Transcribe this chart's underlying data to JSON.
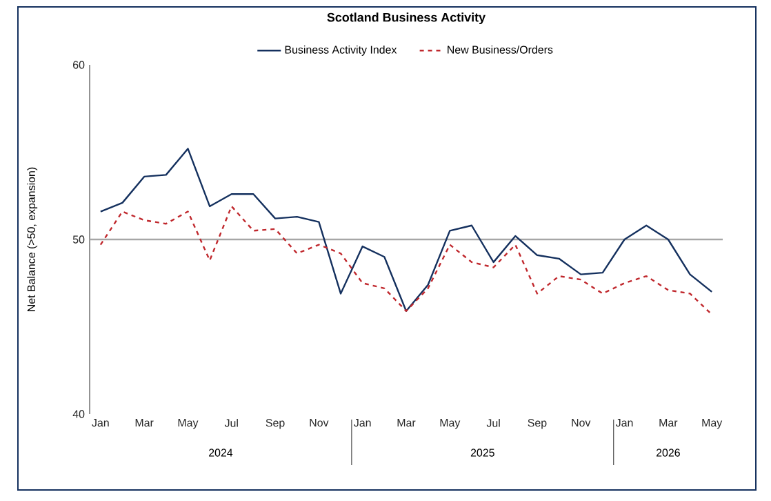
{
  "chart_data": {
    "type": "line",
    "title": "Scotland Business Activity",
    "ylabel": "Net Balance (>50, expansion)",
    "categories": [
      "Jan",
      null,
      "Mar",
      null,
      "May",
      null,
      "Jul",
      null,
      "Sep",
      null,
      "Nov",
      null,
      "Jan",
      null,
      "Mar",
      null,
      "May",
      null,
      "Jul",
      null,
      "Sep",
      null,
      "Nov",
      null,
      "Jan",
      null,
      "Mar",
      null,
      "May"
    ],
    "series": [
      {
        "name": "Business Activity Index",
        "color": "#14305e",
        "line_style": "solid",
        "values": [
          51.6,
          52.1,
          53.6,
          53.7,
          55.2,
          51.9,
          52.6,
          52.6,
          51.2,
          51.3,
          51.0,
          46.9,
          49.6,
          49.0,
          45.9,
          47.4,
          50.5,
          50.8,
          48.7,
          50.2,
          49.1,
          48.9,
          48.0,
          48.1,
          50.0,
          50.8,
          50.0,
          48.0,
          47.0
        ]
      },
      {
        "name": "New Business/Orders",
        "color": "#c0282d",
        "line_style": "dashed",
        "values": [
          49.7,
          51.6,
          51.1,
          50.9,
          51.6,
          48.8,
          51.9,
          50.5,
          50.6,
          49.2,
          49.7,
          49.2,
          47.5,
          47.2,
          45.9,
          47.2,
          49.7,
          48.7,
          48.4,
          49.7,
          46.9,
          47.9,
          47.7,
          46.9,
          47.5,
          47.9,
          47.1,
          46.9,
          45.7
        ]
      }
    ],
    "ylim": [
      40,
      60
    ],
    "yticks": [
      40,
      50,
      60
    ],
    "legend": "top",
    "marker": "none",
    "ref_lines": [
      {
        "axis": "y",
        "value": 50,
        "color": "#a6a6a6"
      }
    ],
    "annotations": [
      "2024",
      "2025",
      "2026"
    ]
  }
}
